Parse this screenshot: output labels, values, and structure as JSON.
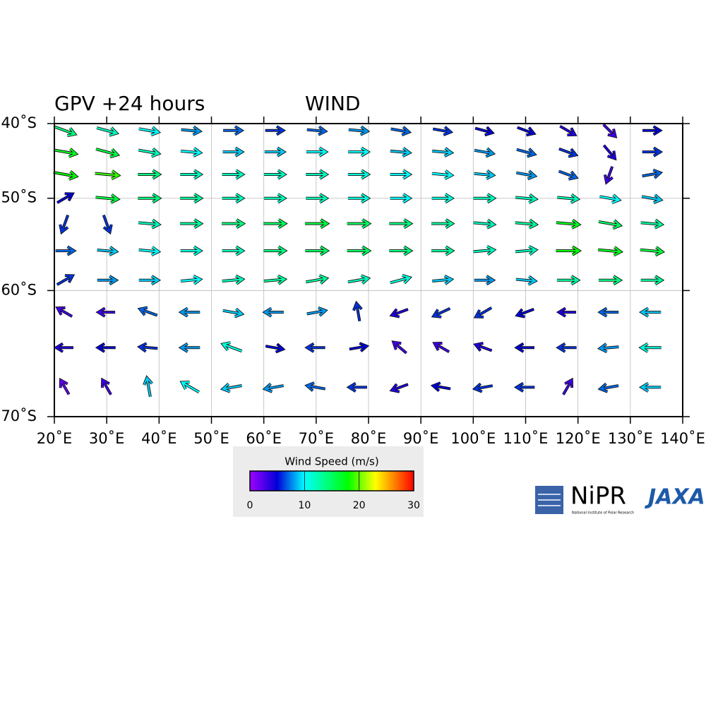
{
  "chart_data": {
    "type": "quiver",
    "title": "GPV +24 hours",
    "subtitle": "WIND",
    "projection": "mercator",
    "xlim": [
      20,
      140
    ],
    "ylim": [
      -70,
      -40
    ],
    "xticks": [
      {
        "value": 20,
        "label": "20˚E"
      },
      {
        "value": 30,
        "label": "30˚E"
      },
      {
        "value": 40,
        "label": "40˚E"
      },
      {
        "value": 50,
        "label": "50˚E"
      },
      {
        "value": 60,
        "label": "60˚E"
      },
      {
        "value": 70,
        "label": "70˚E"
      },
      {
        "value": 80,
        "label": "80˚E"
      },
      {
        "value": 90,
        "label": "90˚E"
      },
      {
        "value": 100,
        "label": "100˚E"
      },
      {
        "value": 110,
        "label": "110˚E"
      },
      {
        "value": 120,
        "label": "120˚E"
      },
      {
        "value": 130,
        "label": "130˚E"
      },
      {
        "value": 140,
        "label": "140˚E"
      }
    ],
    "yticks": [
      {
        "value": -40,
        "label": "40˚S"
      },
      {
        "value": -50,
        "label": "50˚S"
      },
      {
        "value": -60,
        "label": "60˚S"
      },
      {
        "value": -70,
        "label": "70˚S"
      }
    ],
    "grid": true,
    "lons": [
      22,
      30,
      38,
      46,
      54,
      62,
      70,
      78,
      86,
      94,
      102,
      110,
      118,
      126,
      134
    ],
    "rows": [
      {
        "lat": -41,
        "speed": [
          14,
          12,
          10,
          8,
          7,
          6,
          7,
          8,
          7,
          6,
          5,
          5,
          4,
          3,
          5
        ],
        "direction": [
          110,
          105,
          100,
          95,
          90,
          90,
          95,
          95,
          100,
          100,
          105,
          110,
          120,
          135,
          90
        ]
      },
      {
        "lat": -44,
        "speed": [
          17,
          16,
          12,
          10,
          9,
          9,
          10,
          10,
          9,
          9,
          8,
          7,
          6,
          4,
          6
        ],
        "direction": [
          100,
          105,
          100,
          95,
          90,
          90,
          90,
          90,
          95,
          95,
          100,
          105,
          110,
          140,
          90
        ]
      },
      {
        "lat": -47,
        "speed": [
          18,
          19,
          14,
          12,
          12,
          12,
          12,
          11,
          10,
          10,
          9,
          8,
          7,
          3,
          7
        ],
        "direction": [
          100,
          95,
          90,
          90,
          90,
          90,
          90,
          90,
          90,
          95,
          95,
          100,
          110,
          200,
          80
        ]
      },
      {
        "lat": -50,
        "speed": [
          5,
          16,
          14,
          13,
          12,
          12,
          12,
          11,
          10,
          11,
          12,
          12,
          12,
          10,
          9
        ],
        "direction": [
          60,
          95,
          90,
          90,
          90,
          90,
          90,
          90,
          90,
          90,
          90,
          95,
          95,
          100,
          100
        ]
      },
      {
        "lat": -53,
        "speed": [
          6,
          6,
          12,
          13,
          14,
          15,
          16,
          15,
          14,
          13,
          12,
          13,
          17,
          15,
          13
        ],
        "direction": [
          200,
          160,
          95,
          90,
          90,
          90,
          90,
          90,
          90,
          90,
          95,
          95,
          95,
          100,
          95
        ]
      },
      {
        "lat": -56,
        "speed": [
          7,
          9,
          10,
          11,
          12,
          14,
          15,
          15,
          14,
          13,
          12,
          12,
          18,
          17,
          16
        ],
        "direction": [
          90,
          95,
          95,
          90,
          90,
          90,
          90,
          90,
          90,
          90,
          85,
          85,
          90,
          95,
          95
        ]
      },
      {
        "lat": -59,
        "speed": [
          6,
          8,
          9,
          10,
          12,
          13,
          13,
          12,
          11,
          9,
          8,
          9,
          13,
          14,
          13
        ],
        "direction": [
          60,
          90,
          90,
          85,
          85,
          85,
          80,
          80,
          75,
          85,
          90,
          95,
          90,
          90,
          90
        ]
      },
      {
        "lat": -62,
        "speed": [
          3,
          3,
          7,
          8,
          9,
          8,
          8,
          6,
          4,
          6,
          6,
          5,
          4,
          7,
          9
        ],
        "direction": [
          300,
          270,
          290,
          270,
          100,
          270,
          80,
          350,
          250,
          245,
          240,
          250,
          270,
          270,
          270
        ]
      },
      {
        "lat": -65,
        "speed": [
          4,
          5,
          6,
          8,
          11,
          5,
          6,
          5,
          3,
          3,
          4,
          5,
          6,
          8,
          11
        ],
        "direction": [
          270,
          270,
          275,
          270,
          290,
          100,
          270,
          80,
          310,
          300,
          290,
          270,
          270,
          265,
          270
        ]
      },
      {
        "lat": -68,
        "speed": [
          2,
          3,
          9,
          10,
          9,
          8,
          7,
          6,
          4,
          5,
          6,
          6,
          3,
          7,
          9
        ],
        "direction": [
          330,
          330,
          350,
          300,
          260,
          260,
          280,
          270,
          250,
          280,
          260,
          270,
          30,
          260,
          270
        ]
      }
    ],
    "colorbar": {
      "label": "Wind Speed (m/s)",
      "lim": [
        0,
        30
      ],
      "ticks": [
        0,
        10,
        20,
        30
      ],
      "stops": [
        {
          "value": 0,
          "color": "#a000ff"
        },
        {
          "value": 5,
          "color": "#0000d8"
        },
        {
          "value": 10,
          "color": "#00ffff"
        },
        {
          "value": 18,
          "color": "#00ff00"
        },
        {
          "value": 23,
          "color": "#ffff00"
        },
        {
          "value": 30,
          "color": "#ff0000"
        }
      ]
    },
    "logos": {
      "nipr": "NiPR",
      "nipr_sub": "National Institute of Polar Research",
      "jaxa": "JAXA"
    }
  }
}
